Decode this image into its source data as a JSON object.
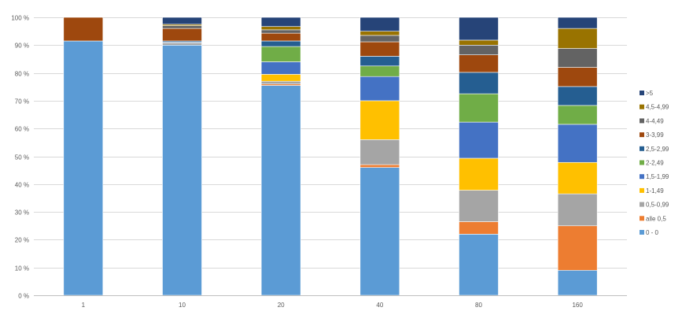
{
  "chart_data": {
    "type": "bar",
    "stacked": true,
    "percent_stacked": true,
    "categories": [
      "1",
      "10",
      "20",
      "40",
      "80",
      "160"
    ],
    "y_ticks": [
      "0 %",
      "10 %",
      "20 %",
      "30 %",
      "40 %",
      "50 %",
      "60 %",
      "70 %",
      "80 %",
      "90 %",
      "100 %"
    ],
    "ylim": [
      0,
      100
    ],
    "grid": true,
    "legend_position": "right",
    "series": [
      {
        "name": "0 - 0",
        "color": "#5B9BD5",
        "values": [
          91.5,
          90.0,
          75.5,
          46.0,
          22.0,
          9.0
        ]
      },
      {
        "name": "alle 0,5",
        "color": "#ED7D31",
        "values": [
          0.0,
          0.0,
          0.5,
          1.0,
          4.5,
          16.0
        ]
      },
      {
        "name": "0,5-0,99",
        "color": "#A5A5A5",
        "values": [
          0.0,
          0.8,
          1.0,
          9.0,
          11.3,
          11.5
        ]
      },
      {
        "name": "1-1,49",
        "color": "#FFC000",
        "values": [
          0.0,
          0.0,
          2.5,
          14.0,
          11.5,
          11.3
        ]
      },
      {
        "name": "1,5-1,99",
        "color": "#4472C4",
        "values": [
          0.0,
          0.2,
          4.5,
          8.7,
          13.0,
          13.7
        ]
      },
      {
        "name": "2-2,49",
        "color": "#70AD47",
        "values": [
          0.0,
          0.0,
          5.5,
          3.8,
          10.2,
          6.8
        ]
      },
      {
        "name": "2,5-2,99",
        "color": "#255E91",
        "values": [
          0.0,
          0.5,
          2.0,
          3.5,
          7.7,
          6.8
        ]
      },
      {
        "name": "3-3,99",
        "color": "#9E480E",
        "values": [
          8.5,
          4.5,
          2.8,
          5.2,
          6.3,
          6.9
        ]
      },
      {
        "name": "4-4,49",
        "color": "#636363",
        "values": [
          0.0,
          1.0,
          1.2,
          2.3,
          3.5,
          6.8
        ]
      },
      {
        "name": "4,5-4,99",
        "color": "#997300",
        "values": [
          0.0,
          0.5,
          1.2,
          1.5,
          1.8,
          7.2
        ]
      },
      {
        "name": ">5",
        "color": "#264478",
        "values": [
          0.0,
          2.5,
          3.3,
          5.0,
          8.2,
          4.0
        ]
      }
    ]
  }
}
